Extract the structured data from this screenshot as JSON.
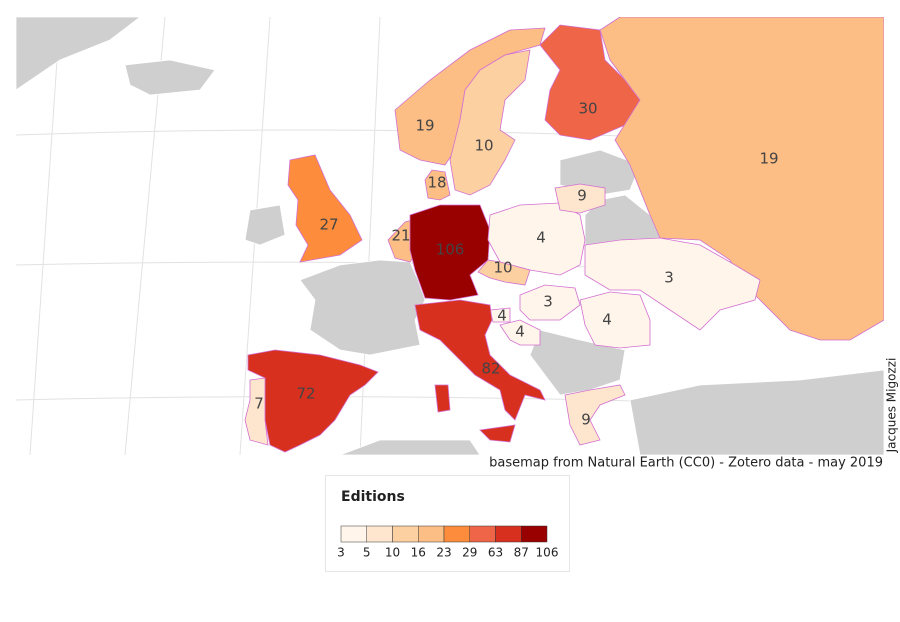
{
  "map": {
    "regions": [
      {
        "value": 19
      },
      {
        "value": 10
      },
      {
        "value": 30
      },
      {
        "value": 19
      },
      {
        "value": 18
      },
      {
        "value": 27
      },
      {
        "value": 21
      },
      {
        "value": 106
      },
      {
        "value": 4
      },
      {
        "value": 10
      },
      {
        "value": 9
      },
      {
        "value": 3
      },
      {
        "value": 3
      },
      {
        "value": 4
      },
      {
        "value": 4
      },
      {
        "value": 4
      },
      {
        "value": 82
      },
      {
        "value": 72
      },
      {
        "value": 7
      },
      {
        "value": 9
      }
    ]
  },
  "legend": {
    "title": "Editions",
    "breaks": [
      3,
      5,
      10,
      16,
      23,
      29,
      63,
      87,
      106
    ],
    "colors": [
      "#fff5eb",
      "#fee6ce",
      "#fdd0a2",
      "#fdbe85",
      "#fd8d3c",
      "#ef6548",
      "#d7301f",
      "#990000"
    ]
  },
  "credit": "basemap from Natural Earth (CC0) - Zotero data - may 2019",
  "author": "Jacques Migozzi"
}
